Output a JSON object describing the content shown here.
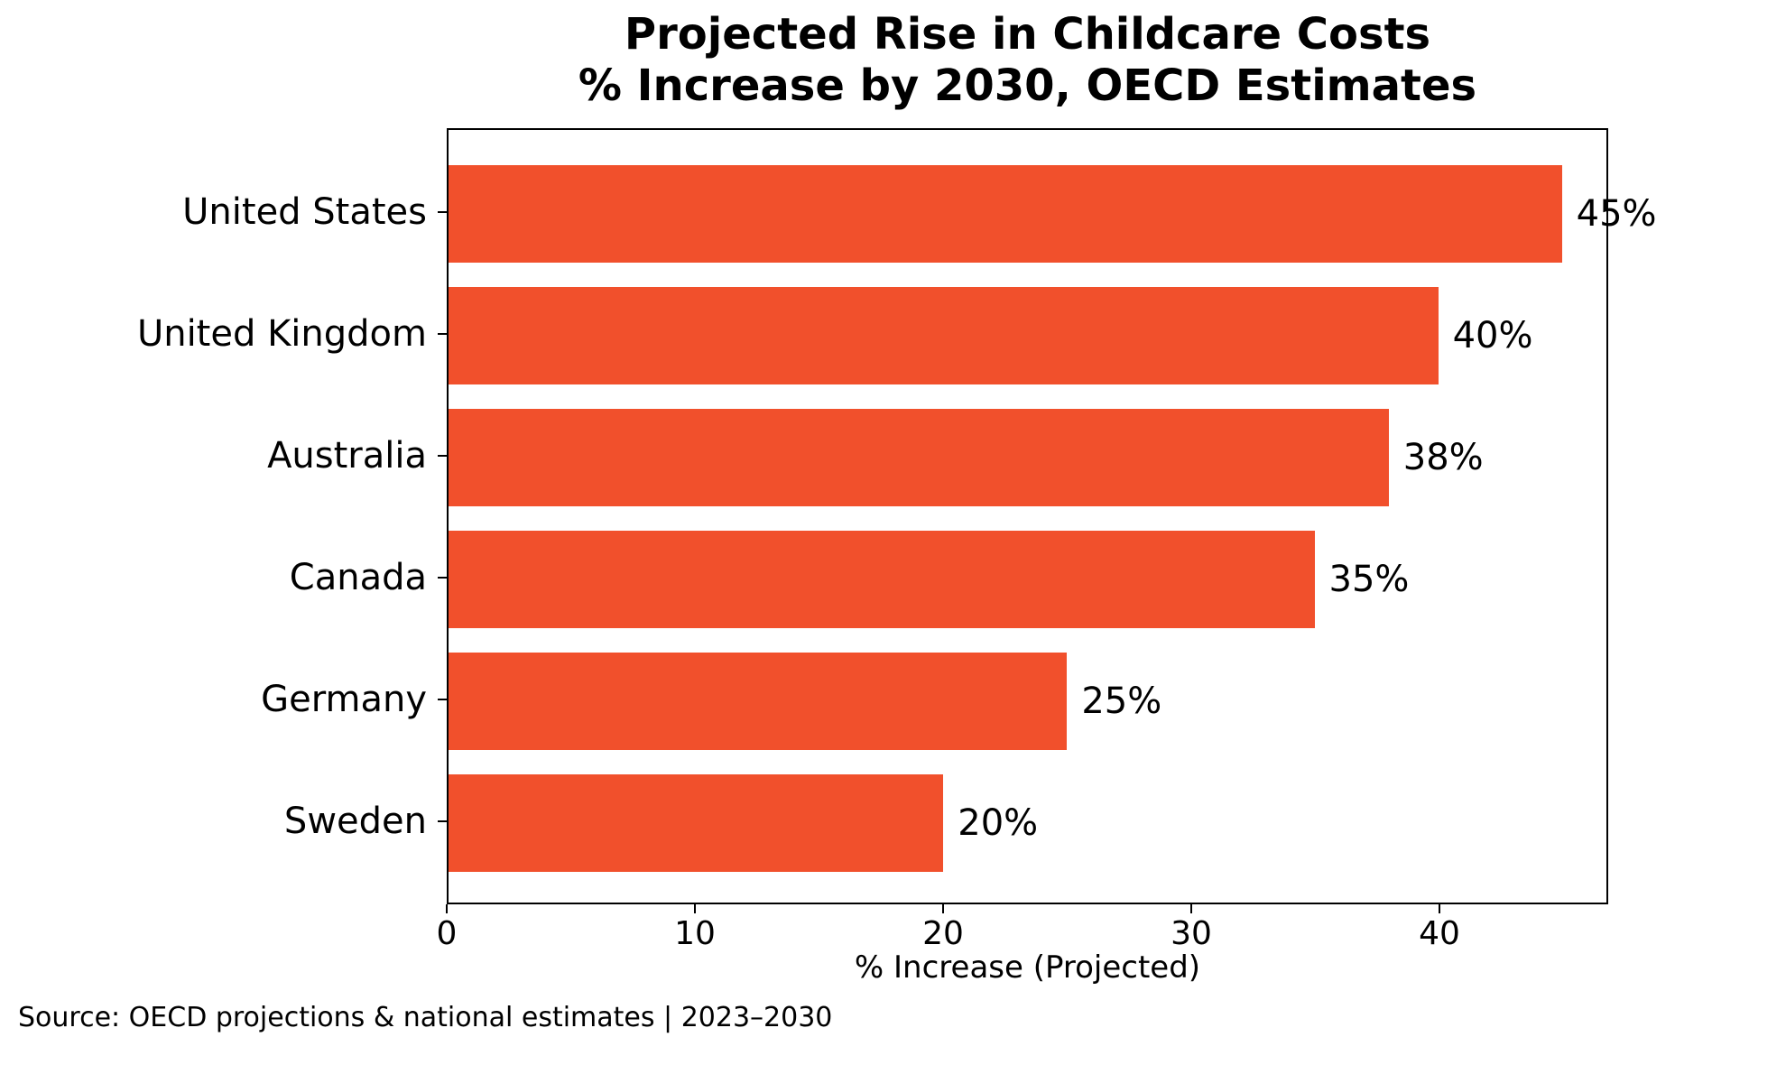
{
  "title": {
    "line1": "Projected Rise in Childcare Costs",
    "line2": "% Increase by 2030, OECD Estimates"
  },
  "source_note": "Source: OECD projections & national estimates | 2023–2030",
  "chart_data": {
    "type": "bar",
    "orientation": "horizontal",
    "title": "Projected Rise in Childcare Costs — % Increase by 2030, OECD Estimates",
    "categories": [
      "United States",
      "United Kingdom",
      "Australia",
      "Canada",
      "Germany",
      "Sweden"
    ],
    "values": [
      45,
      40,
      38,
      35,
      25,
      20
    ],
    "value_labels": [
      "45%",
      "40%",
      "38%",
      "35%",
      "25%",
      "20%"
    ],
    "xlabel": "% Increase (Projected)",
    "x_ticks": [
      0,
      10,
      20,
      30,
      40
    ],
    "x_tick_labels": [
      "0",
      "10",
      "20",
      "30",
      "40"
    ],
    "xlim": [
      0,
      46.8
    ],
    "bar_color": "#F1502C",
    "text_color": "#000000",
    "spine_color": "#000000",
    "grid": false,
    "legend_position": "none",
    "value_labels_outside_bars": true
  }
}
